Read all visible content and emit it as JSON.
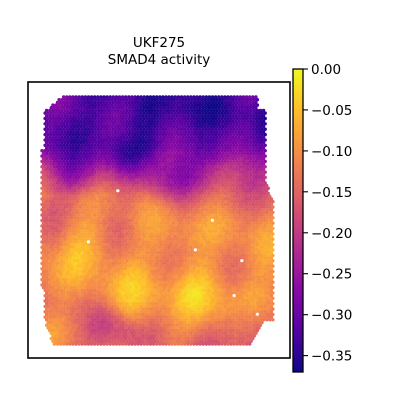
{
  "chart_data": {
    "type": "heatmap",
    "title": "UKF275",
    "subtitle": "SMAD4 activity",
    "xlabel": "",
    "ylabel": "",
    "colormap": "plasma",
    "colorbar": {
      "range": [
        -0.37,
        0.0
      ],
      "ticks": [
        0.0,
        -0.05,
        -0.1,
        -0.15,
        -0.2,
        -0.25,
        -0.3,
        -0.35
      ],
      "tick_labels": [
        "0.00",
        "−0.05",
        "−0.10",
        "−0.15",
        "−0.20",
        "−0.25",
        "−0.30",
        "−0.35"
      ]
    },
    "field_rows": {
      "rows": [
        0.0,
        0.1,
        0.2,
        0.3,
        0.4,
        0.5,
        0.6,
        0.7,
        0.8,
        0.9,
        1.0
      ],
      "values": [
        -0.31,
        -0.32,
        -0.3,
        -0.21,
        -0.14,
        -0.12,
        -0.11,
        -0.1,
        -0.09,
        -0.1,
        -0.13
      ]
    },
    "hot_spots": [
      {
        "x": 0.35,
        "y": 0.18,
        "value": -0.34
      },
      {
        "x": 0.45,
        "y": 0.12,
        "value": -0.36
      },
      {
        "x": 0.62,
        "y": 0.06,
        "value": -0.36
      },
      {
        "x": 0.3,
        "y": 0.02,
        "value": -0.35
      },
      {
        "x": 0.78,
        "y": 0.15,
        "value": -0.33
      },
      {
        "x": 0.15,
        "y": 0.28,
        "value": -0.3
      },
      {
        "x": 0.55,
        "y": 0.32,
        "value": -0.28
      },
      {
        "x": 0.2,
        "y": 0.6,
        "value": -0.05
      },
      {
        "x": 0.7,
        "y": 0.78,
        "value": -0.04
      },
      {
        "x": 0.4,
        "y": 0.82,
        "value": -0.06
      },
      {
        "x": 0.85,
        "y": 0.55,
        "value": -0.1
      },
      {
        "x": 0.1,
        "y": 0.85,
        "value": -0.13
      },
      {
        "x": 0.55,
        "y": 0.6,
        "value": -0.07
      },
      {
        "x": 0.3,
        "y": 0.95,
        "value": -0.22
      },
      {
        "x": 0.9,
        "y": 0.95,
        "value": -0.2
      }
    ],
    "missing_spots": [
      {
        "x": 0.33,
        "y": 0.38
      },
      {
        "x": 0.2,
        "y": 0.59
      },
      {
        "x": 0.73,
        "y": 0.5
      },
      {
        "x": 0.66,
        "y": 0.62
      },
      {
        "x": 0.86,
        "y": 0.66
      },
      {
        "x": 0.82,
        "y": 0.8
      },
      {
        "x": 0.87,
        "y": 0.8
      },
      {
        "x": 0.92,
        "y": 0.88
      }
    ],
    "grid": false,
    "legend": "colorbar-right"
  }
}
